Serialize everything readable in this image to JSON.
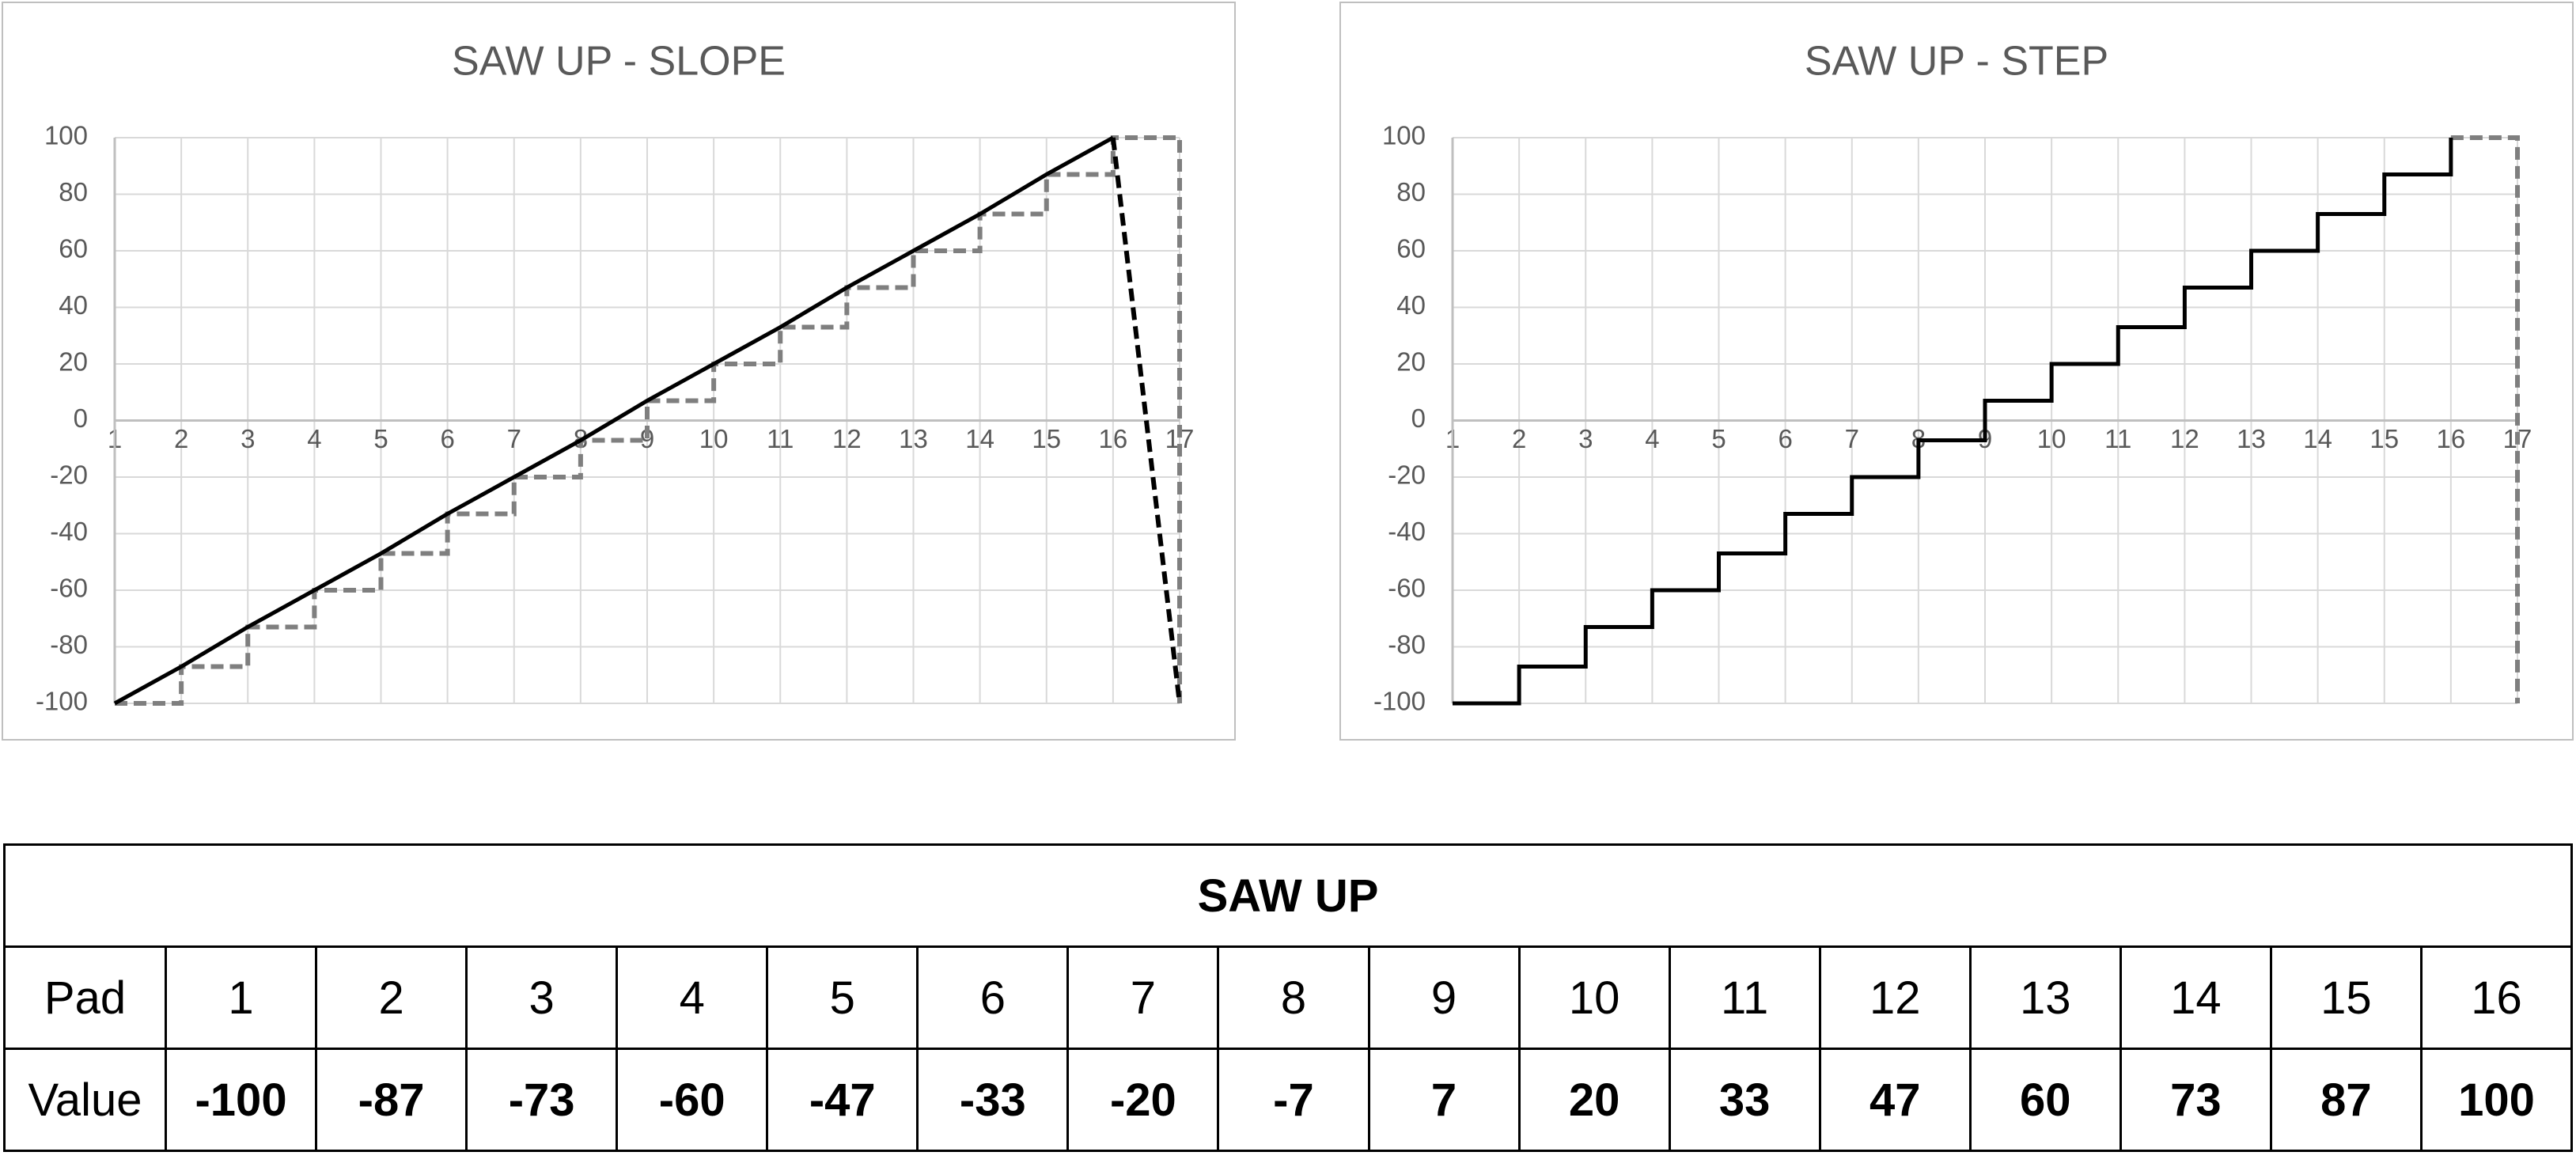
{
  "chart_data": [
    {
      "type": "line",
      "title": "SAW UP - SLOPE",
      "x": [
        1,
        2,
        3,
        4,
        5,
        6,
        7,
        8,
        9,
        10,
        11,
        12,
        13,
        14,
        15,
        16,
        17
      ],
      "xlim": [
        1,
        17
      ],
      "xticks": [
        1,
        2,
        3,
        4,
        5,
        6,
        7,
        8,
        9,
        10,
        11,
        12,
        13,
        14,
        15,
        16,
        17
      ],
      "ylim": [
        -100,
        100
      ],
      "yticks": [
        -100,
        -80,
        -60,
        -40,
        -20,
        0,
        20,
        40,
        60,
        80,
        100
      ],
      "grid": true,
      "series": [
        {
          "color": "#7f7f7f",
          "dashed": true,
          "step": true,
          "values": [
            -100,
            -87,
            -73,
            -60,
            -47,
            -33,
            -20,
            -7,
            7,
            20,
            33,
            47,
            60,
            73,
            87,
            100,
            -100
          ]
        },
        {
          "color": "#000000",
          "dashed": false,
          "step": false,
          "values": [
            -100,
            -87,
            -73,
            -60,
            -47,
            -33,
            -20,
            -7,
            7,
            20,
            33,
            47,
            60,
            73,
            87,
            100,
            null
          ]
        },
        {
          "color": "#000000",
          "dashed": true,
          "step": false,
          "values": [
            null,
            null,
            null,
            null,
            null,
            null,
            null,
            null,
            null,
            null,
            null,
            null,
            null,
            null,
            null,
            100,
            -100
          ]
        }
      ]
    },
    {
      "type": "line",
      "title": "SAW UP - STEP",
      "x": [
        1,
        2,
        3,
        4,
        5,
        6,
        7,
        8,
        9,
        10,
        11,
        12,
        13,
        14,
        15,
        16,
        17
      ],
      "xlim": [
        1,
        17
      ],
      "xticks": [
        1,
        2,
        3,
        4,
        5,
        6,
        7,
        8,
        9,
        10,
        11,
        12,
        13,
        14,
        15,
        16,
        17
      ],
      "ylim": [
        -100,
        100
      ],
      "yticks": [
        -100,
        -80,
        -60,
        -40,
        -20,
        0,
        20,
        40,
        60,
        80,
        100
      ],
      "grid": true,
      "series": [
        {
          "color": "#7f7f7f",
          "dashed": true,
          "step": true,
          "values": [
            null,
            null,
            null,
            null,
            null,
            null,
            null,
            null,
            null,
            null,
            null,
            null,
            null,
            null,
            null,
            100,
            -100
          ]
        },
        {
          "color": "#000000",
          "dashed": false,
          "step": true,
          "values": [
            -100,
            -87,
            -73,
            -60,
            -47,
            -33,
            -20,
            -7,
            7,
            20,
            33,
            47,
            60,
            73,
            87,
            100,
            null
          ]
        }
      ]
    }
  ],
  "table": {
    "title": "SAW UP",
    "rows": [
      [
        "Pad",
        1,
        2,
        3,
        4,
        5,
        6,
        7,
        8,
        9,
        10,
        11,
        12,
        13,
        14,
        15,
        16
      ],
      [
        "Value",
        -100,
        -87,
        -73,
        -60,
        -47,
        -33,
        -20,
        -7,
        7,
        20,
        33,
        47,
        60,
        73,
        87,
        100
      ]
    ]
  }
}
